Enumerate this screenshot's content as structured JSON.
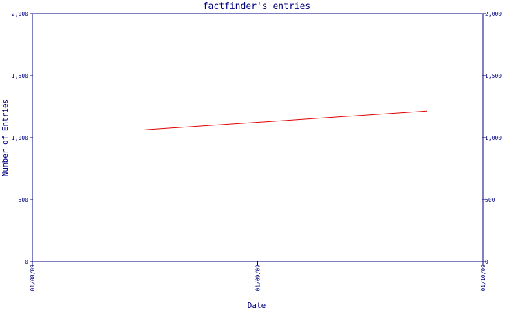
{
  "chart_data": {
    "type": "line",
    "title": "factfinder's entries",
    "xlabel": "Date",
    "ylabel": "Number of Entries",
    "ylim": [
      0,
      2000
    ],
    "y_ticks": [
      "0",
      "500",
      "1,000",
      "1,500",
      "2,000"
    ],
    "y_tick_values": [
      0,
      500,
      1000,
      1500,
      2000
    ],
    "x_ticks": [
      "01/08/09",
      "01/09/09",
      "01/10/09"
    ],
    "series": [
      {
        "x": [
          "01/08/09 12:00",
          "01/09/09 18:00"
        ],
        "values": [
          1065,
          1215
        ]
      }
    ],
    "grid": false,
    "right_axis": true
  },
  "colors": {
    "axis": "#000080",
    "line": "#e00000",
    "background": "#ffffff"
  }
}
